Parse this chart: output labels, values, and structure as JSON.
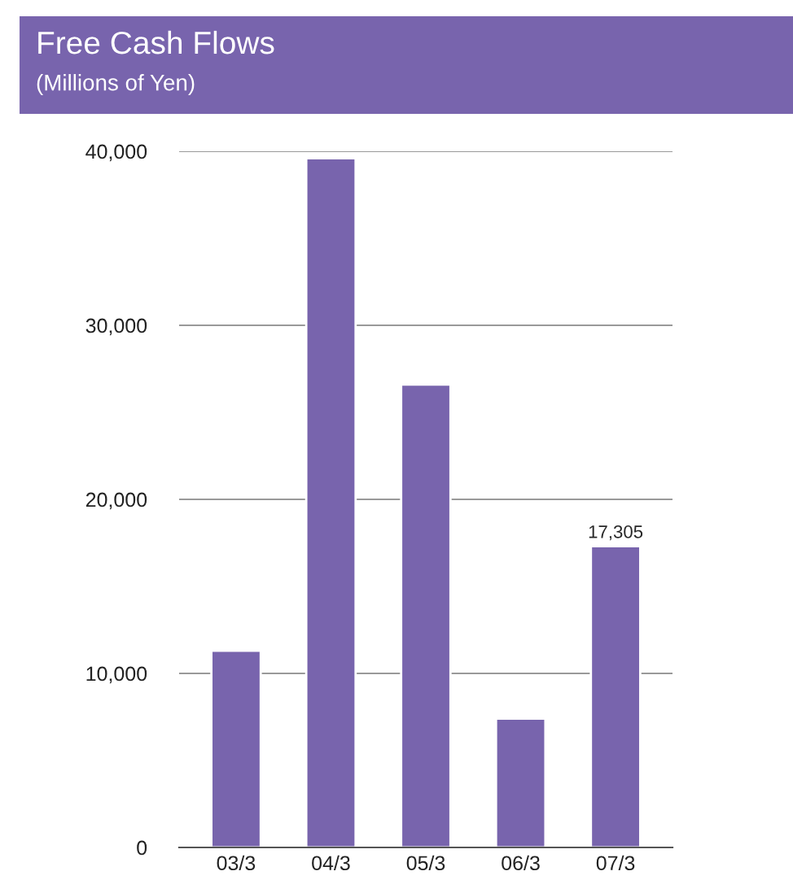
{
  "chart_data": {
    "type": "bar",
    "title": "Free Cash Flows",
    "subtitle": "(Millions of Yen)",
    "categories": [
      "03/3",
      "04/3",
      "05/3",
      "06/3",
      "07/3"
    ],
    "values": [
      11300,
      39600,
      26600,
      7400,
      17305
    ],
    "value_labels": [
      null,
      null,
      null,
      null,
      "17,305"
    ],
    "color": "#7864ad",
    "ylim": [
      0,
      40000
    ],
    "yticks": [
      0,
      {
        "value": 10000,
        "label": "10,000"
      },
      {
        "value": 20000,
        "label": "20,000"
      },
      {
        "value": 30000,
        "label": "30,000"
      },
      {
        "value": 40000,
        "label": "40,000"
      }
    ],
    "grid": "y"
  }
}
